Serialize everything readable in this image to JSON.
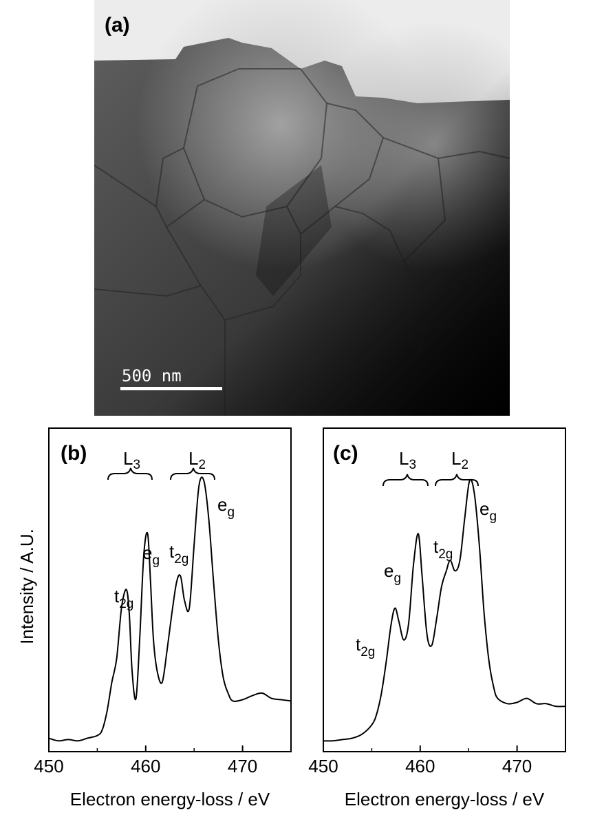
{
  "figure": {
    "panel_a": {
      "label": "(a)",
      "scale_bar_text": "500 nm"
    },
    "panel_b": {
      "label": "(b)",
      "edge_labels": [
        {
          "base": "L",
          "sub": "3"
        },
        {
          "base": "L",
          "sub": "2"
        }
      ],
      "peaks": [
        {
          "base": "t",
          "sub": "2g"
        },
        {
          "base": "e",
          "sub": "g"
        },
        {
          "base": "t",
          "sub": "2g"
        },
        {
          "base": "e",
          "sub": "g"
        }
      ]
    },
    "panel_c": {
      "label": "(c)",
      "edge_labels": [
        {
          "base": "L",
          "sub": "3"
        },
        {
          "base": "L",
          "sub": "2"
        }
      ],
      "peaks": [
        {
          "base": "t",
          "sub": "2g"
        },
        {
          "base": "e",
          "sub": "g"
        },
        {
          "base": "t",
          "sub": "2g"
        },
        {
          "base": "e",
          "sub": "g"
        }
      ]
    },
    "ylabel": "Intensity  / A.U.",
    "xlabel": "Electron energy-loss / eV"
  },
  "chart_data": [
    {
      "type": "line",
      "panel": "(b)",
      "xlabel": "Electron energy-loss / eV",
      "ylabel": "Intensity  / A.U.",
      "xlim": [
        450,
        475
      ],
      "ylim": [
        0,
        1.12
      ],
      "xticks": [
        450,
        460,
        470
      ],
      "series": [
        {
          "x": [
            450,
            451,
            452,
            453,
            454,
            455,
            455.5,
            456,
            456.5,
            457,
            457.5,
            458,
            458.3,
            458.6,
            459,
            459.4,
            459.8,
            460.2,
            460.5,
            460.8,
            461.2,
            461.7,
            462.2,
            462.7,
            463.2,
            463.6,
            464,
            464.5,
            465,
            465.5,
            466,
            466.5,
            467,
            467.5,
            468,
            468.5,
            469,
            470,
            471,
            472,
            473,
            474,
            475
          ],
          "y": [
            0.03,
            0.02,
            0.025,
            0.02,
            0.03,
            0.04,
            0.06,
            0.13,
            0.24,
            0.33,
            0.52,
            0.59,
            0.5,
            0.28,
            0.18,
            0.42,
            0.72,
            0.8,
            0.62,
            0.4,
            0.28,
            0.24,
            0.36,
            0.5,
            0.62,
            0.64,
            0.55,
            0.52,
            0.76,
            0.98,
            1.0,
            0.86,
            0.62,
            0.4,
            0.26,
            0.2,
            0.17,
            0.175,
            0.19,
            0.2,
            0.18,
            0.175,
            0.17
          ]
        }
      ],
      "annotations": [
        "L3",
        "L2",
        "t2g",
        "eg",
        "t2g",
        "eg"
      ]
    },
    {
      "type": "line",
      "panel": "(c)",
      "xlabel": "Electron energy-loss / eV",
      "ylabel": "Intensity  / A.U.",
      "xlim": [
        450,
        475
      ],
      "ylim": [
        0,
        1.12
      ],
      "xticks": [
        450,
        460,
        470
      ],
      "series": [
        {
          "x": [
            450,
            451,
            452,
            453,
            454,
            455,
            455.5,
            456,
            456.5,
            457,
            457.4,
            457.8,
            458.3,
            458.8,
            459.3,
            459.8,
            460.2,
            460.7,
            461.2,
            461.7,
            462.2,
            462.7,
            463.1,
            463.6,
            464.1,
            464.6,
            465.1,
            465.6,
            466.1,
            466.6,
            467.1,
            467.6,
            468,
            469,
            470,
            471,
            472,
            473,
            474,
            475
          ],
          "y": [
            0.02,
            0.02,
            0.025,
            0.03,
            0.045,
            0.08,
            0.12,
            0.2,
            0.32,
            0.46,
            0.52,
            0.47,
            0.4,
            0.46,
            0.68,
            0.8,
            0.64,
            0.42,
            0.38,
            0.48,
            0.6,
            0.66,
            0.7,
            0.66,
            0.7,
            0.86,
            1.0,
            0.95,
            0.76,
            0.5,
            0.32,
            0.22,
            0.18,
            0.16,
            0.165,
            0.18,
            0.16,
            0.16,
            0.15,
            0.15
          ]
        }
      ],
      "annotations": [
        "L3",
        "L2",
        "t2g",
        "eg",
        "t2g",
        "eg"
      ]
    }
  ]
}
